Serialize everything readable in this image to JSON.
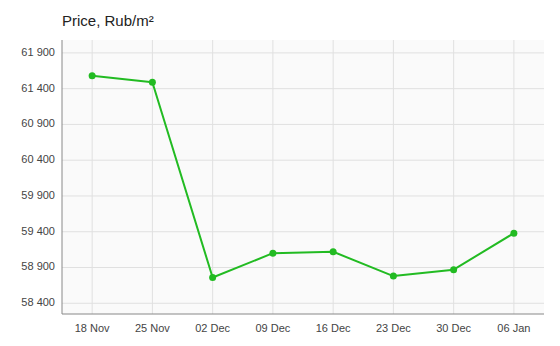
{
  "chart_data": {
    "type": "line",
    "title": "Price, Rub/m²",
    "categories": [
      "18 Nov",
      "25 Nov",
      "02 Dec",
      "09 Dec",
      "16 Dec",
      "23 Dec",
      "30 Dec",
      "06 Jan"
    ],
    "values": [
      61580,
      61490,
      58760,
      59100,
      59120,
      58780,
      58870,
      59380
    ],
    "color": "#22bb22",
    "ylim": [
      58250,
      62080
    ],
    "yticks": [
      {
        "value": 58400,
        "label": "58 400"
      },
      {
        "value": 58900,
        "label": "58 900"
      },
      {
        "value": 59400,
        "label": "59 400"
      },
      {
        "value": 59900,
        "label": "59 900"
      },
      {
        "value": 60400,
        "label": "60 400"
      },
      {
        "value": 60900,
        "label": "60 900"
      },
      {
        "value": 61400,
        "label": "61 400"
      },
      {
        "value": 61900,
        "label": "61 900"
      }
    ],
    "grid": true
  }
}
